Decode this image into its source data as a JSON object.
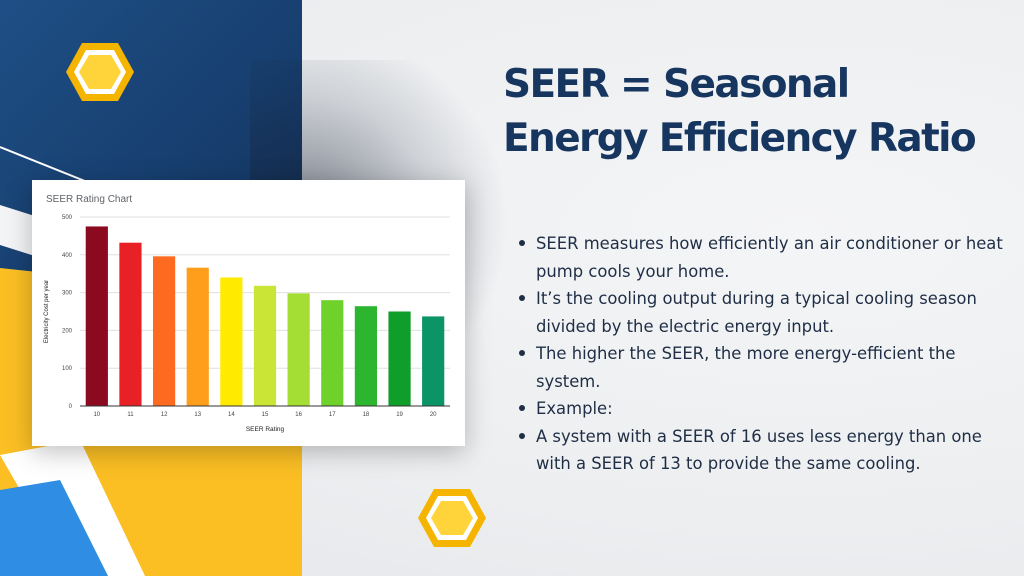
{
  "slide": {
    "title_lines": [
      "SEER = Seasonal",
      "Energy Efficiency Ratio"
    ],
    "bullets": [
      "SEER measures how efficiently an air conditioner or heat pump cools your home.",
      "It’s the cooling output during a typical cooling season divided by the electric energy input.",
      "The higher the SEER, the more energy-efficient the system.",
      "Example:",
      "A system with a SEER of 16 uses less energy than one with a SEER of 13 to provide the same cooling."
    ]
  },
  "colors": {
    "navy": "#163c6b",
    "heading": "#17365f",
    "accent_yellow": "#fbbf24",
    "hex_fill": "#ffd43b",
    "hex_ring": "#f4b400"
  },
  "icons": [
    "hexagon-icon-top-left",
    "hexagon-icon-bottom-center"
  ],
  "chart_data": {
    "type": "bar",
    "title": "SEER Rating Chart",
    "xlabel": "SEER Rating",
    "ylabel": "Electricity Cost per year",
    "categories": [
      "10",
      "11",
      "12",
      "13",
      "14",
      "15",
      "16",
      "17",
      "18",
      "19",
      "20"
    ],
    "values": [
      475,
      432,
      396,
      366,
      340,
      318,
      298,
      280,
      264,
      250,
      237
    ],
    "bar_colors": [
      "#8b0a1f",
      "#e82127",
      "#ff6a21",
      "#ff9e1b",
      "#ffea00",
      "#cbe536",
      "#a4dd34",
      "#6fd22a",
      "#2cb52e",
      "#109e2a",
      "#0b9566"
    ],
    "ylim": [
      0,
      500
    ],
    "yticks": [
      0,
      100,
      200,
      300,
      400,
      500
    ],
    "grid": true,
    "legend": "none"
  }
}
